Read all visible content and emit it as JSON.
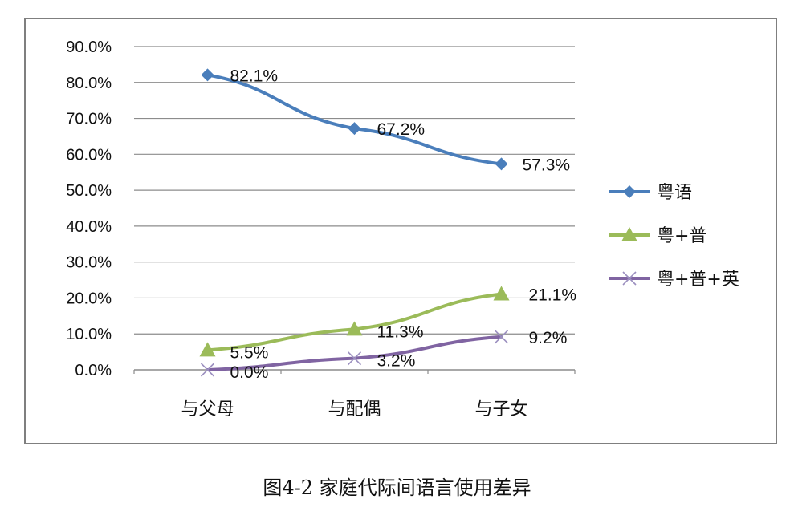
{
  "caption": "图4-2 家庭代际间语言使用差异",
  "chart_data": {
    "type": "line",
    "categories": [
      "与父母",
      "与配偶",
      "与子女"
    ],
    "ylim": [
      0,
      90
    ],
    "ytick_step": 10,
    "ytick_format": "percent_1dp",
    "y_tick_labels": [
      "0.0%",
      "10.0%",
      "20.0%",
      "30.0%",
      "40.0%",
      "50.0%",
      "60.0%",
      "70.0%",
      "80.0%",
      "90.0%"
    ],
    "grid": true,
    "legend_position": "right",
    "series": [
      {
        "name": "粤语",
        "values": [
          82.1,
          67.2,
          57.3
        ],
        "labels": [
          "82.1%",
          "67.2%",
          "57.3%"
        ],
        "color": "#4a7ebb",
        "marker": "diamond"
      },
      {
        "name": "粤+普",
        "values": [
          5.5,
          11.3,
          21.1
        ],
        "labels": [
          "5.5%",
          "11.3%",
          "21.1%"
        ],
        "color": "#9bbb59",
        "marker": "triangle"
      },
      {
        "name": "粤+普+英",
        "values": [
          0.0,
          3.2,
          9.2
        ],
        "labels": [
          "0.0%",
          "3.2%",
          "9.2%"
        ],
        "color": "#8064a2",
        "marker": "x"
      }
    ]
  }
}
